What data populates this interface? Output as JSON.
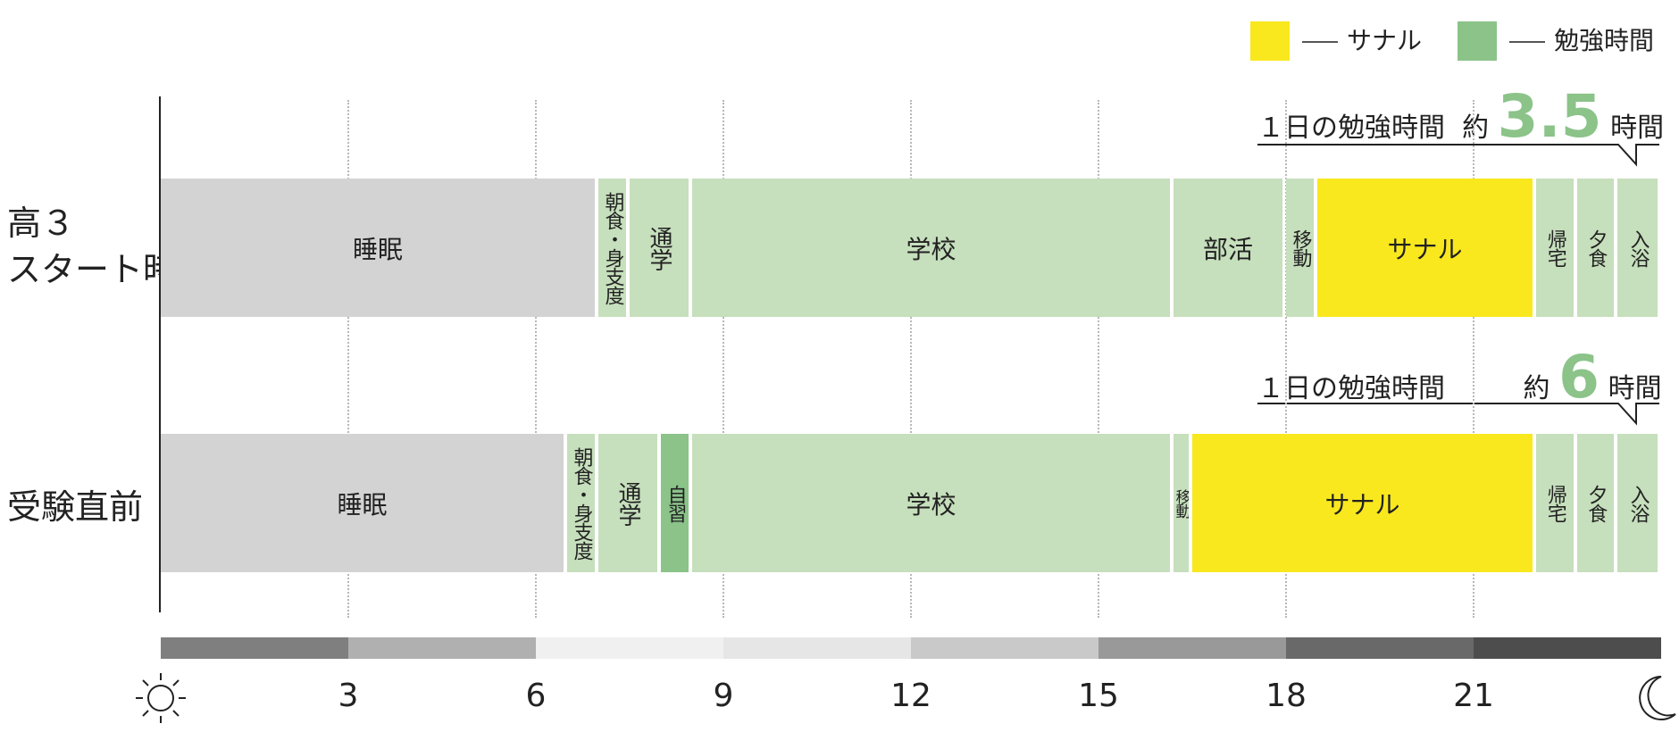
{
  "legend": [
    {
      "label": "サナル",
      "color": "#f9e81e"
    },
    {
      "label": "勉強時間",
      "color": "#8bc389"
    }
  ],
  "colors": {
    "sleep": "#d3d3d3",
    "life": "#c6dfbc",
    "study": "#8bc389",
    "sanaru": "#f9e81e"
  },
  "rows": [
    {
      "label_line1": "高３",
      "label_line2": "スタート時",
      "callout": {
        "prefix": "１日の勉強時間",
        "about": "約",
        "value": "3.5",
        "unit": "時間"
      }
    },
    {
      "label_line1": "受験直前",
      "label_line2": "",
      "callout": {
        "prefix": "１日の勉強時間",
        "about": "約",
        "value": "6",
        "unit": "時間"
      }
    }
  ],
  "chart_data": {
    "type": "bar",
    "subtype": "stacked-horizontal-timeline",
    "x_ticks": [
      "3",
      "6",
      "9",
      "12",
      "15",
      "18",
      "21"
    ],
    "xlim": [
      0,
      24
    ],
    "series": [
      {
        "row": "高３ スタート時",
        "segments": [
          {
            "label": "睡眠",
            "start": 0,
            "end": 7.0,
            "kind": "sleep"
          },
          {
            "label": "朝食・身支度",
            "start": 7.0,
            "end": 7.5,
            "kind": "life"
          },
          {
            "label": "通学",
            "start": 7.5,
            "end": 8.5,
            "kind": "life"
          },
          {
            "label": "学校",
            "start": 8.5,
            "end": 16.2,
            "kind": "life"
          },
          {
            "label": "部活",
            "start": 16.2,
            "end": 18.0,
            "kind": "life"
          },
          {
            "label": "移動",
            "start": 18.0,
            "end": 18.5,
            "kind": "life"
          },
          {
            "label": "サナル",
            "start": 18.5,
            "end": 22.0,
            "kind": "sanaru"
          },
          {
            "label": "帰宅",
            "start": 22.0,
            "end": 22.65,
            "kind": "life"
          },
          {
            "label": "夕食",
            "start": 22.65,
            "end": 23.3,
            "kind": "life"
          },
          {
            "label": "入浴",
            "start": 23.3,
            "end": 24.0,
            "kind": "life"
          }
        ]
      },
      {
        "row": "受験直前",
        "segments": [
          {
            "label": "睡眠",
            "start": 0,
            "end": 6.5,
            "kind": "sleep"
          },
          {
            "label": "朝食・身支度",
            "start": 6.5,
            "end": 7.0,
            "kind": "life"
          },
          {
            "label": "通学",
            "start": 7.0,
            "end": 8.0,
            "kind": "life"
          },
          {
            "label": "自習",
            "start": 8.0,
            "end": 8.5,
            "kind": "study"
          },
          {
            "label": "学校",
            "start": 8.5,
            "end": 16.2,
            "kind": "life"
          },
          {
            "label": "移動",
            "start": 16.2,
            "end": 16.5,
            "kind": "life"
          },
          {
            "label": "サナル",
            "start": 16.5,
            "end": 22.0,
            "kind": "sanaru"
          },
          {
            "label": "帰宅",
            "start": 22.0,
            "end": 22.65,
            "kind": "life"
          },
          {
            "label": "夕食",
            "start": 22.65,
            "end": 23.3,
            "kind": "life"
          },
          {
            "label": "入浴",
            "start": 23.3,
            "end": 24.0,
            "kind": "life"
          }
        ]
      }
    ],
    "day_bands": [
      "#7f7f7f",
      "#b0b0b0",
      "#f0f0f0",
      "#e6e6e6",
      "#c9c9c9",
      "#999999",
      "#696969",
      "#4d4d4d"
    ],
    "icons": {
      "start": "sun-icon",
      "end": "moon-icon"
    }
  }
}
